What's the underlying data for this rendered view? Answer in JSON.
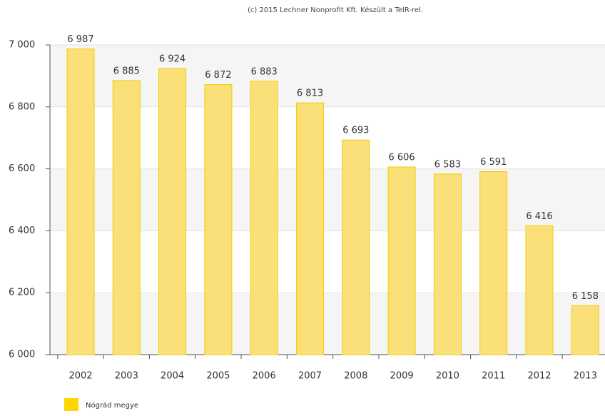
{
  "chart_data": {
    "type": "bar",
    "subtitle": "(c) 2015 Lechner Nonprofit Kft. Készült a TeIR-rel.",
    "categories": [
      "2002",
      "2003",
      "2004",
      "2005",
      "2006",
      "2007",
      "2008",
      "2009",
      "2010",
      "2011",
      "2012",
      "2013"
    ],
    "series": [
      {
        "name": "Nógrád megye",
        "color": "#fbe07a",
        "values": [
          6987,
          6885,
          6924,
          6872,
          6883,
          6813,
          6693,
          6606,
          6583,
          6591,
          6416,
          6158
        ],
        "value_labels": [
          "6 987",
          "6 885",
          "6 924",
          "6 872",
          "6 883",
          "6 813",
          "6 693",
          "6 606",
          "6 583",
          "6 591",
          "6 416",
          "6 158"
        ]
      }
    ],
    "ylim": [
      6000,
      7000
    ],
    "yticks": [
      {
        "value": 6000,
        "label": "6 000"
      },
      {
        "value": 6200,
        "label": "6 200"
      },
      {
        "value": 6400,
        "label": "6 400"
      },
      {
        "value": 6600,
        "label": "6 600"
      },
      {
        "value": 6800,
        "label": "6 800"
      },
      {
        "value": 7000,
        "label": "7 000"
      }
    ],
    "grid": true,
    "legend": "bottom-left"
  }
}
